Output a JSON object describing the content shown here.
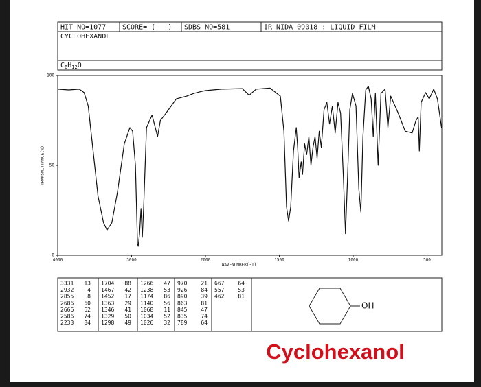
{
  "header": {
    "hit_no": "HIT-NO=1077",
    "score": "SCORE= (   )",
    "sdbs_no": "SDBS-NO=581",
    "ir_id": "IR-NIDA-09018 : LIQUID FILM",
    "name": "CYCLOHEXANOL",
    "formula": [
      "C",
      "6",
      "H",
      "12",
      "O"
    ]
  },
  "chart_data": {
    "type": "line",
    "x_label": "WAVENUMBER(-1)",
    "y_label": "TRANSMITTANCE(%)",
    "color": "#111111",
    "xlim": [
      4000,
      400
    ],
    "x_scale_break": 2000,
    "xticks": [
      4000,
      3000,
      2000,
      1500,
      1000,
      500
    ],
    "ylim": [
      0,
      100
    ],
    "yticks": [
      0,
      50,
      100
    ],
    "x": [
      4000,
      3850,
      3709,
      3643,
      3587,
      3521,
      3455,
      3380,
      3333,
      3268,
      3192,
      3099,
      3023,
      2986,
      2948,
      2920,
      2911,
      2892,
      2873,
      2855,
      2836,
      2798,
      2723,
      2667,
      2648,
      2610,
      2535,
      2394,
      2254,
      2160,
      2066,
      2000,
      1892,
      1751,
      1704,
      1657,
      1563,
      1493,
      1469,
      1451,
      1437,
      1423,
      1404,
      1385,
      1376,
      1366,
      1352,
      1343,
      1329,
      1315,
      1300,
      1286,
      1272,
      1258,
      1244,
      1230,
      1216,
      1197,
      1178,
      1160,
      1141,
      1122,
      1103,
      1085,
      1066,
      1052,
      1038,
      1023,
      1005,
      981,
      962,
      948,
      934,
      915,
      897,
      878,
      864,
      850,
      831,
      812,
      784,
      765,
      746,
      695,
      648,
      601,
      575,
      560,
      552,
      540,
      510,
      485,
      455,
      430,
      402
    ],
    "values": [
      92.4,
      92,
      92.4,
      90.5,
      83,
      58,
      33,
      18,
      14,
      18,
      35,
      62,
      71,
      69,
      50,
      6.5,
      5,
      12,
      26,
      10,
      27,
      71,
      78,
      69,
      66,
      75,
      79,
      87,
      88.5,
      90,
      91,
      91.6,
      92.4,
      92.7,
      89,
      92.4,
      93,
      88.5,
      69,
      27,
      19,
      27,
      58,
      71,
      60,
      43,
      52,
      45,
      62,
      56,
      66,
      50,
      60,
      66,
      54,
      69,
      60,
      81,
      85,
      73,
      83,
      68,
      85,
      79,
      43,
      12,
      43,
      81,
      90,
      83,
      37,
      24,
      66,
      92,
      94,
      87,
      66,
      90,
      50,
      90,
      92.4,
      71,
      88.5,
      79,
      69,
      68,
      75,
      77,
      58,
      85,
      90.5,
      87,
      92.4,
      87,
      71
    ]
  },
  "peak_table": {
    "columns": [
      [
        [
          3331,
          13
        ],
        [
          2932,
          4
        ],
        [
          2855,
          8
        ],
        [
          2686,
          60
        ],
        [
          2666,
          62
        ],
        [
          2586,
          74
        ],
        [
          2233,
          84
        ]
      ],
      [
        [
          1704,
          88
        ],
        [
          1467,
          42
        ],
        [
          1452,
          17
        ],
        [
          1363,
          29
        ],
        [
          1346,
          41
        ],
        [
          1329,
          50
        ],
        [
          1298,
          49
        ]
      ],
      [
        [
          1266,
          47
        ],
        [
          1238,
          53
        ],
        [
          1174,
          86
        ],
        [
          1140,
          56
        ],
        [
          1068,
          11
        ],
        [
          1034,
          52
        ],
        [
          1026,
          32
        ]
      ],
      [
        [
          970,
          21
        ],
        [
          926,
          84
        ],
        [
          890,
          39
        ],
        [
          863,
          81
        ],
        [
          845,
          47
        ],
        [
          835,
          74
        ],
        [
          789,
          64
        ]
      ],
      [
        [
          667,
          64
        ],
        [
          557,
          53
        ],
        [
          462,
          81
        ]
      ]
    ]
  },
  "structure_label": "OH",
  "caption": "Cyclohexanol"
}
